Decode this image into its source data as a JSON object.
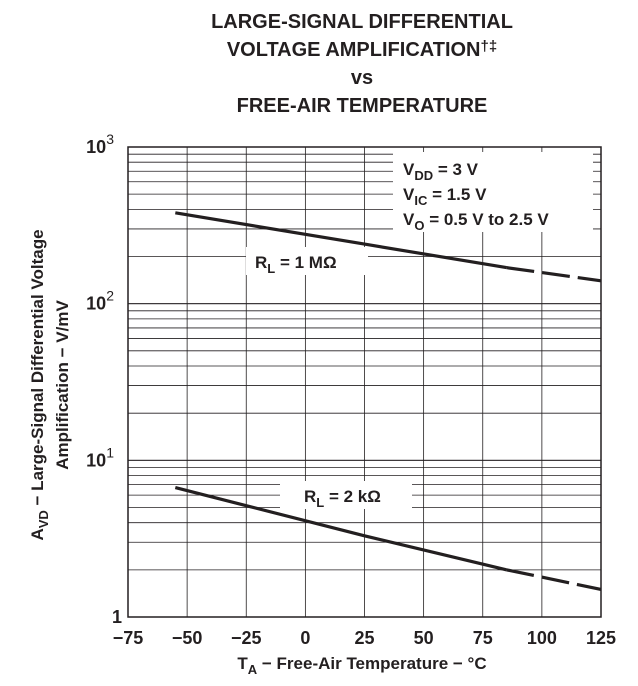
{
  "chart_data": {
    "type": "line",
    "title_lines": [
      "LARGE-SIGNAL DIFFERENTIAL",
      "VOLTAGE AMPLIFICATION",
      "vs",
      "FREE-AIR TEMPERATURE"
    ],
    "title_footnote_marks": "†‡",
    "xlabel": {
      "main": "T",
      "sub": "A",
      "rest": " − Free-Air Temperature − °C"
    },
    "ylabel": {
      "line1_main": "A",
      "line1_sub": "VD",
      "line1_rest": " − Large-Signal Differential Voltage",
      "line2": "Amplification − V/mV"
    },
    "xlim": [
      -75,
      125
    ],
    "ylim": [
      1,
      1000
    ],
    "yscale": "log",
    "x_ticks": [
      -75,
      -50,
      -25,
      0,
      25,
      50,
      75,
      100,
      125
    ],
    "x_tick_labels": [
      "−75",
      "−50",
      "−25",
      "0",
      "25",
      "50",
      "75",
      "100",
      "125"
    ],
    "y_ticks": [
      {
        "value": 1,
        "base": "1",
        "exp": ""
      },
      {
        "value": 10,
        "base": "10",
        "exp": "1"
      },
      {
        "value": 100,
        "base": "10",
        "exp": "2"
      },
      {
        "value": 1000,
        "base": "10",
        "exp": "3"
      }
    ],
    "grid": true,
    "conditions": [
      {
        "main": "V",
        "sub": "DD",
        "rest": " = 3 V"
      },
      {
        "main": "V",
        "sub": "IC",
        "rest": " = 1.5 V"
      },
      {
        "main": "V",
        "sub": "O",
        "rest": " = 0.5 V to 2.5 V"
      }
    ],
    "series": [
      {
        "name": "RL = 1 MΩ",
        "label": {
          "main": "R",
          "sub": "L",
          "rest": " = 1 MΩ"
        },
        "points": [
          [
            -55,
            380
          ],
          [
            25,
            240
          ],
          [
            85,
            170
          ],
          [
            125,
            140
          ]
        ],
        "dashed_from_x": 85
      },
      {
        "name": "RL = 2 kΩ",
        "label": {
          "main": "R",
          "sub": "L",
          "rest": " = 2 kΩ"
        },
        "points": [
          [
            -55,
            6.7
          ],
          [
            25,
            3.3
          ],
          [
            85,
            2.0
          ],
          [
            125,
            1.5
          ]
        ],
        "dashed_from_x": 85
      }
    ]
  }
}
